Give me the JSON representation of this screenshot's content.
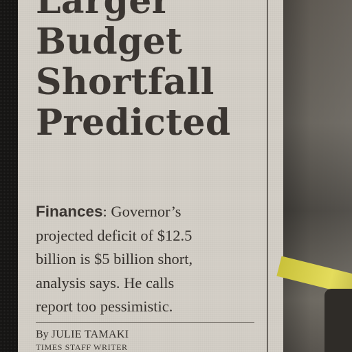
{
  "headline": {
    "lines": [
      "Larger",
      "Budget",
      "Shortfall",
      "Predicted"
    ]
  },
  "deck": {
    "kicker": "Finances",
    "line1_rest": ": Governor’s",
    "line2": "projected deficit of $12.5",
    "line3": "billion is $5 billion short,",
    "line4": "analysis says. He calls",
    "line5": "report too pessimistic."
  },
  "byline": {
    "prefix": "By",
    "name": "JULIE TAMAKI",
    "staff": "TIMES STAFF WRITER"
  }
}
